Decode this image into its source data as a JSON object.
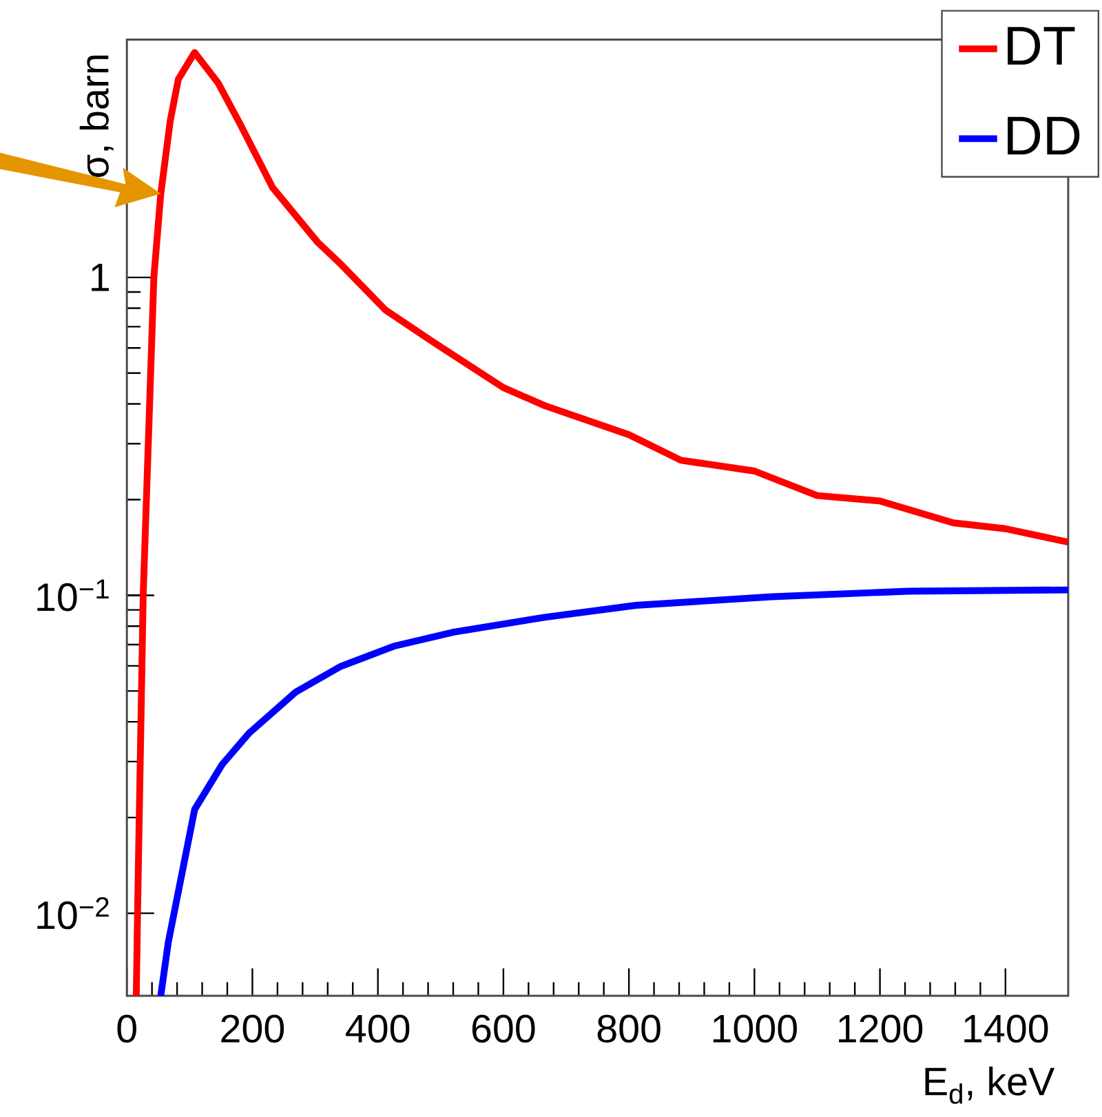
{
  "chart_data": {
    "type": "line",
    "xlabel": "E$_{d}$, keV",
    "ylabel": "σ, barn",
    "log": "y",
    "xlim": [
      0,
      1500
    ],
    "ylim": [
      0.0055,
      5.6
    ],
    "xticks": [
      0,
      200,
      400,
      600,
      800,
      1000,
      1200,
      1400
    ],
    "yticks": [
      {
        "value": 0.01,
        "label": "10$^{−2}$"
      },
      {
        "value": 0.1,
        "label": "10$^{−1}$"
      },
      1
    ],
    "legend": "top right",
    "grid": false,
    "series": [
      {
        "name": "DT",
        "color": "#ff0000",
        "x": [
          15,
          17,
          26,
          43,
          54,
          69,
          82,
          108,
          145,
          180,
          232,
          304,
          341,
          412,
          486,
          600,
          666,
          800,
          883,
          1000,
          1100,
          1200,
          1317,
          1400,
          1500
        ],
        "values": [
          0.0055,
          0.01,
          0.1,
          1,
          1.83,
          3.1,
          4.2,
          5.1,
          4.1,
          3.05,
          1.92,
          1.29,
          1.1,
          0.79,
          0.63,
          0.45,
          0.395,
          0.32,
          0.266,
          0.246,
          0.206,
          0.198,
          0.169,
          0.162,
          0.147
        ]
      },
      {
        "name": "DD",
        "color": "#0000ff",
        "x": [
          54,
          66,
          108,
          152,
          195,
          269,
          341,
          427,
          521,
          666,
          811,
          1028,
          1245,
          1500
        ],
        "values": [
          0.0055,
          0.0081,
          0.0212,
          0.0294,
          0.0369,
          0.0496,
          0.0598,
          0.0693,
          0.0766,
          0.0853,
          0.093,
          0.099,
          0.103,
          0.104
        ]
      }
    ]
  }
}
